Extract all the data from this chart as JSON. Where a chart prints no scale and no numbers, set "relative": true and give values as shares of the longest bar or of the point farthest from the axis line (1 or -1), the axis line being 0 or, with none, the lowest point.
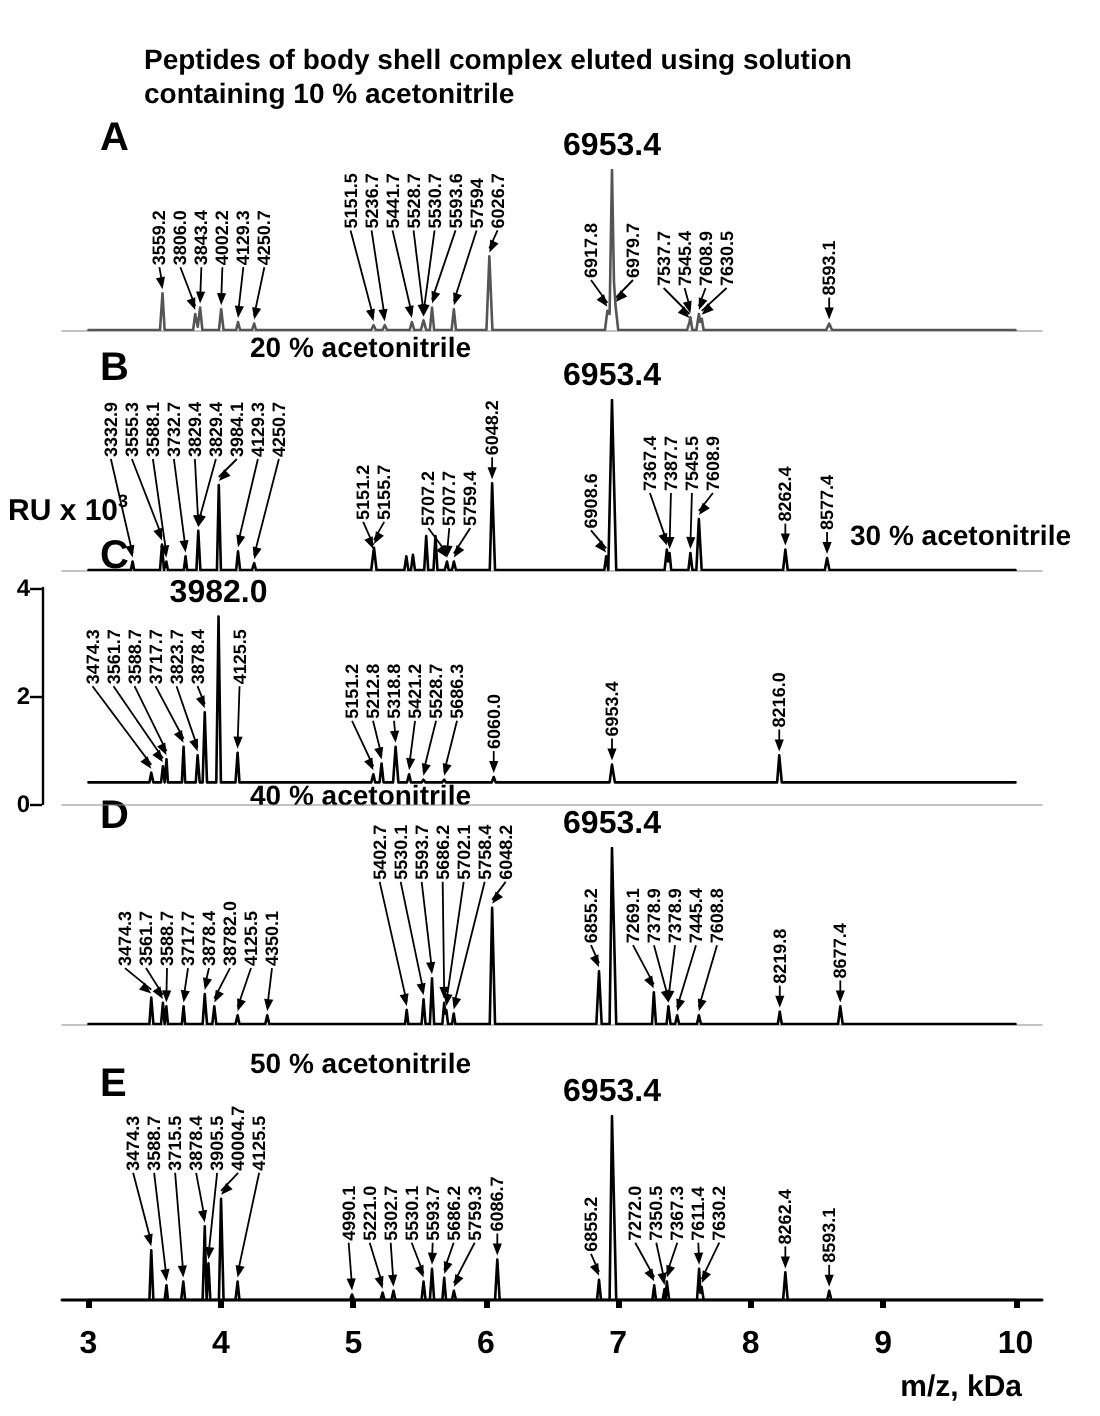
{
  "chart_data": [
    {
      "type": "line",
      "title": "A",
      "subtitle": "Peptides of body shell complex eluted using solution containing 10 % acetonitrile",
      "relative": true,
      "xlim": [
        2.8,
        10.2
      ],
      "tick_labels": false,
      "grid": false,
      "series": [
        {
          "color": "#555555",
          "x": [
            3.0,
            3.54,
            3.559,
            3.575,
            3.79,
            3.806,
            3.825,
            3.843,
            3.86,
            3.985,
            4.002,
            4.02,
            4.115,
            4.129,
            4.145,
            4.235,
            4.251,
            4.265,
            5.135,
            5.152,
            5.17,
            5.22,
            5.237,
            5.255,
            5.425,
            5.442,
            5.46,
            5.51,
            5.53,
            5.55,
            5.578,
            5.594,
            5.61,
            5.742,
            5.759,
            5.775,
            6.005,
            6.027,
            6.05,
            6.9,
            6.918,
            6.935,
            6.953,
            6.968,
            6.98,
            7.0,
            7.52,
            7.538,
            7.545,
            7.56,
            7.59,
            7.609,
            7.62,
            7.631,
            7.645,
            8.57,
            8.593,
            8.615,
            10.0
          ],
          "values": [
            0,
            0,
            0.23,
            0,
            0,
            0.1,
            0.02,
            0.14,
            0,
            0,
            0.13,
            0,
            0,
            0.05,
            0,
            0,
            0.04,
            0,
            0,
            0.03,
            0,
            0,
            0.03,
            0,
            0,
            0.05,
            0,
            0,
            0.06,
            0,
            0,
            0.14,
            0,
            0,
            0.13,
            0,
            0,
            0.46,
            0,
            0,
            0.12,
            0.1,
            1,
            0.3,
            0.15,
            0,
            0,
            0.05,
            0.08,
            0,
            0,
            0.1,
            0.05,
            0.07,
            0,
            0,
            0.04,
            0,
            0
          ]
        }
      ],
      "annotations": [
        {
          "text": "3559.2",
          "x": 3.559,
          "y": 0.23
        },
        {
          "text": "3806.0",
          "x": 3.806,
          "y": 0.1
        },
        {
          "text": "3843.4",
          "x": 3.843,
          "y": 0.14
        },
        {
          "text": "4002.2",
          "x": 4.002,
          "y": 0.13
        },
        {
          "text": "4129.3",
          "x": 4.129,
          "y": 0.05
        },
        {
          "text": "4250.7",
          "x": 4.251,
          "y": 0.04
        },
        {
          "text": "5151.5",
          "x": 5.152,
          "y": 0.03
        },
        {
          "text": "5236.7",
          "x": 5.237,
          "y": 0.03
        },
        {
          "text": "5441.7",
          "x": 5.442,
          "y": 0.05
        },
        {
          "text": "5528.7",
          "x": 5.53,
          "y": 0.06
        },
        {
          "text": "5530.7",
          "x": 5.53,
          "y": 0.06
        },
        {
          "text": "5593.6",
          "x": 5.594,
          "y": 0.14
        },
        {
          "text": "57594",
          "x": 5.759,
          "y": 0.13
        },
        {
          "text": "6026.7",
          "x": 6.027,
          "y": 0.46
        },
        {
          "text": "6917.8",
          "x": 6.918,
          "y": 0.12
        },
        {
          "text": "6953.4",
          "x": 6.953,
          "y": 1
        },
        {
          "text": "6979.7",
          "x": 6.98,
          "y": 0.15
        },
        {
          "text": "7537.7",
          "x": 7.538,
          "y": 0.05
        },
        {
          "text": "7545.4",
          "x": 7.545,
          "y": 0.08
        },
        {
          "text": "7608.9",
          "x": 7.609,
          "y": 0.1
        },
        {
          "text": "7630.5",
          "x": 7.631,
          "y": 0.07
        },
        {
          "text": "8593.1",
          "x": 8.593,
          "y": 0.04
        }
      ]
    },
    {
      "type": "line",
      "title": "B",
      "subtitle": "20 % acetonitrile",
      "relative": true,
      "xlim": [
        2.8,
        10.2
      ],
      "tick_labels": false,
      "grid": false,
      "series": [
        {
          "color": "#000000",
          "x": [
            3.0,
            3.32,
            3.333,
            3.345,
            3.54,
            3.555,
            3.57,
            3.575,
            3.588,
            3.6,
            3.72,
            3.733,
            3.745,
            3.815,
            3.829,
            3.845,
            3.97,
            3.984,
            4.0,
            4.115,
            4.129,
            4.145,
            4.235,
            4.251,
            4.265,
            5.135,
            5.151,
            5.156,
            5.175,
            5.385,
            5.4,
            5.415,
            5.435,
            5.45,
            5.465,
            5.535,
            5.55,
            5.565,
            5.605,
            5.62,
            5.635,
            5.69,
            5.707,
            5.72,
            5.745,
            5.759,
            5.775,
            6.03,
            6.048,
            6.07,
            6.895,
            6.909,
            6.925,
            6.935,
            6.953,
            6.985,
            7.35,
            7.367,
            7.377,
            7.388,
            7.4,
            7.53,
            7.545,
            7.56,
            7.59,
            7.609,
            7.63,
            8.245,
            8.262,
            8.28,
            8.56,
            8.577,
            8.595,
            10.0
          ],
          "values": [
            0,
            0,
            0.05,
            0,
            0,
            0.15,
            0,
            0,
            0.05,
            0,
            0,
            0.08,
            0,
            0,
            0.23,
            0,
            0,
            0.5,
            0,
            0,
            0.11,
            0,
            0,
            0.04,
            0,
            0,
            0.1,
            0.13,
            0,
            0,
            0.08,
            0,
            0,
            0.09,
            0,
            0,
            0.2,
            0,
            0,
            0.2,
            0,
            0,
            0.05,
            0,
            0,
            0.05,
            0,
            0,
            0.51,
            0,
            0,
            0.08,
            0,
            0,
            1,
            0,
            0,
            0.12,
            0.05,
            0.1,
            0,
            0,
            0.1,
            0,
            0,
            0.3,
            0,
            0,
            0.12,
            0,
            0,
            0.07,
            0,
            0
          ]
        }
      ],
      "annotations": [
        {
          "text": "3332.9",
          "x": 3.333,
          "y": 0.05
        },
        {
          "text": "3555.3",
          "x": 3.555,
          "y": 0.15
        },
        {
          "text": "3588.1",
          "x": 3.588,
          "y": 0.05
        },
        {
          "text": "3732.7",
          "x": 3.733,
          "y": 0.08
        },
        {
          "text": "3829.4",
          "x": 3.829,
          "y": 0.23
        },
        {
          "text": "3829.4",
          "x": 3.829,
          "y": 0.23
        },
        {
          "text": "3984.1",
          "x": 3.984,
          "y": 0.5
        },
        {
          "text": "4129.3",
          "x": 4.129,
          "y": 0.11
        },
        {
          "text": "4250.7",
          "x": 4.251,
          "y": 0.04
        },
        {
          "text": "5151.2",
          "x": 5.151,
          "y": 0.1
        },
        {
          "text": "5155.7",
          "x": 5.156,
          "y": 0.13
        },
        {
          "text": "5707.2",
          "x": 5.707,
          "y": 0.05
        },
        {
          "text": "5707.7",
          "x": 5.707,
          "y": 0.05
        },
        {
          "text": "5759.4",
          "x": 5.759,
          "y": 0.05
        },
        {
          "text": "6048.2",
          "x": 6.048,
          "y": 0.51
        },
        {
          "text": "6908.6",
          "x": 6.909,
          "y": 0.08
        },
        {
          "text": "6953.4",
          "x": 6.953,
          "y": 1
        },
        {
          "text": "7367.4",
          "x": 7.367,
          "y": 0.12
        },
        {
          "text": "7387.7",
          "x": 7.388,
          "y": 0.1
        },
        {
          "text": "7545.5",
          "x": 7.545,
          "y": 0.1
        },
        {
          "text": "7608.9",
          "x": 7.609,
          "y": 0.3
        },
        {
          "text": "8262.4",
          "x": 8.262,
          "y": 0.12
        },
        {
          "text": "8577.4",
          "x": 8.577,
          "y": 0.07
        }
      ]
    },
    {
      "type": "line",
      "title": "C",
      "subtitle": "30 % acetonitrile",
      "ylabel": "RU x 10$^{3}$",
      "xlim": [
        2.8,
        10.2
      ],
      "ylim": [
        0,
        4
      ],
      "yticks": [
        0,
        2,
        4
      ],
      "tick_labels": "y",
      "grid": false,
      "series": [
        {
          "color": "#000000",
          "x": [
            3.0,
            3.46,
            3.474,
            3.49,
            3.548,
            3.562,
            3.575,
            3.589,
            3.6,
            3.705,
            3.718,
            3.73,
            3.81,
            3.824,
            3.84,
            3.862,
            3.878,
            3.895,
            3.965,
            3.982,
            4.0,
            4.11,
            4.126,
            4.14,
            5.135,
            5.151,
            5.165,
            5.198,
            5.213,
            5.228,
            5.3,
            5.319,
            5.34,
            5.405,
            5.421,
            5.435,
            5.515,
            5.529,
            5.545,
            5.67,
            5.686,
            5.7,
            6.045,
            6.06,
            6.075,
            6.935,
            6.953,
            6.975,
            8.2,
            8.216,
            8.235,
            10.0
          ],
          "values": [
            0.4,
            0.4,
            0.58,
            0.4,
            0.4,
            0.7,
            0.4,
            0.83,
            0.4,
            0.4,
            1.06,
            0.4,
            0.4,
            0.9,
            0.4,
            0.4,
            1.7,
            0.4,
            0.4,
            3.47,
            0.4,
            0.4,
            0.95,
            0.4,
            0.4,
            0.55,
            0.4,
            0.4,
            0.75,
            0.4,
            0.4,
            1.06,
            0.4,
            0.4,
            0.55,
            0.4,
            0.4,
            0.45,
            0.4,
            0.4,
            0.45,
            0.4,
            0.4,
            0.5,
            0.4,
            0.4,
            0.73,
            0.4,
            0.4,
            0.9,
            0.4,
            0.4
          ]
        }
      ],
      "annotations": [
        {
          "text": "3474.3",
          "x": 3.474,
          "y": 0.58
        },
        {
          "text": "3561.7",
          "x": 3.562,
          "y": 0.7
        },
        {
          "text": "3588.7",
          "x": 3.589,
          "y": 0.83
        },
        {
          "text": "3717.7",
          "x": 3.718,
          "y": 1.06
        },
        {
          "text": "3823.7",
          "x": 3.824,
          "y": 0.9
        },
        {
          "text": "3878.4",
          "x": 3.878,
          "y": 1.7
        },
        {
          "text": "3982.0",
          "x": 3.982,
          "y": 3.47
        },
        {
          "text": "4125.5",
          "x": 4.126,
          "y": 0.95
        },
        {
          "text": "5151.2",
          "x": 5.151,
          "y": 0.55
        },
        {
          "text": "5212.8",
          "x": 5.213,
          "y": 0.75
        },
        {
          "text": "5318.8",
          "x": 5.319,
          "y": 1.06
        },
        {
          "text": "5421.2",
          "x": 5.421,
          "y": 0.55
        },
        {
          "text": "5528.7",
          "x": 5.529,
          "y": 0.45
        },
        {
          "text": "5686.3",
          "x": 5.686,
          "y": 0.45
        },
        {
          "text": "6060.0",
          "x": 6.06,
          "y": 0.5
        },
        {
          "text": "6953.4",
          "x": 6.953,
          "y": 0.73
        },
        {
          "text": "8216.0",
          "x": 8.216,
          "y": 0.9
        }
      ]
    },
    {
      "type": "line",
      "title": "D",
      "subtitle": "40 % acetonitrile",
      "relative": true,
      "xlim": [
        2.8,
        10.2
      ],
      "tick_labels": false,
      "grid": false,
      "series": [
        {
          "color": "#000000",
          "x": [
            3.0,
            3.46,
            3.474,
            3.49,
            3.548,
            3.562,
            3.575,
            3.588,
            3.6,
            3.705,
            3.718,
            3.73,
            3.862,
            3.878,
            3.895,
            3.935,
            3.95,
            3.965,
            4.11,
            4.126,
            4.14,
            4.335,
            4.35,
            4.365,
            5.39,
            5.403,
            5.415,
            5.515,
            5.53,
            5.545,
            5.578,
            5.594,
            5.61,
            5.672,
            5.686,
            5.694,
            5.702,
            5.715,
            5.745,
            5.758,
            5.77,
            6.03,
            6.048,
            6.07,
            6.835,
            6.855,
            6.875,
            6.935,
            6.953,
            6.985,
            7.255,
            7.269,
            7.285,
            7.365,
            7.379,
            7.395,
            7.43,
            7.445,
            7.46,
            7.595,
            7.609,
            7.625,
            8.205,
            8.22,
            8.235,
            8.66,
            8.677,
            8.695,
            10.0
          ],
          "values": [
            0,
            0,
            0.15,
            0,
            0,
            0.12,
            0,
            0.1,
            0,
            0,
            0.1,
            0,
            0,
            0.17,
            0,
            0,
            0.1,
            0,
            0,
            0.05,
            0,
            0,
            0.05,
            0,
            0,
            0.08,
            0,
            0,
            0.14,
            0,
            0,
            0.26,
            0,
            0,
            0.12,
            0.06,
            0.08,
            0,
            0,
            0.06,
            0,
            0,
            0.66,
            0,
            0,
            0.3,
            0,
            0,
            1,
            0,
            0,
            0.18,
            0,
            0,
            0.1,
            0,
            0,
            0.05,
            0,
            0,
            0.05,
            0,
            0,
            0.07,
            0,
            0,
            0.1,
            0,
            0
          ]
        }
      ],
      "annotations": [
        {
          "text": "3474.3",
          "x": 3.474,
          "y": 0.15
        },
        {
          "text": "3561.7",
          "x": 3.562,
          "y": 0.12
        },
        {
          "text": "3588.7",
          "x": 3.588,
          "y": 0.1
        },
        {
          "text": "3717.7",
          "x": 3.718,
          "y": 0.1
        },
        {
          "text": "3878.4",
          "x": 3.878,
          "y": 0.17
        },
        {
          "text": "38782.0",
          "x": 3.95,
          "y": 0.1
        },
        {
          "text": "4125.5",
          "x": 4.126,
          "y": 0.05
        },
        {
          "text": "4350.1",
          "x": 4.35,
          "y": 0.05
        },
        {
          "text": "5402.7",
          "x": 5.403,
          "y": 0.08
        },
        {
          "text": "5530.1",
          "x": 5.53,
          "y": 0.14
        },
        {
          "text": "5593.7",
          "x": 5.594,
          "y": 0.26
        },
        {
          "text": "5686.2",
          "x": 5.686,
          "y": 0.12
        },
        {
          "text": "5702.1",
          "x": 5.702,
          "y": 0.08
        },
        {
          "text": "5758.4",
          "x": 5.758,
          "y": 0.06
        },
        {
          "text": "6048.2",
          "x": 6.048,
          "y": 0.66
        },
        {
          "text": "6855.2",
          "x": 6.855,
          "y": 0.3
        },
        {
          "text": "6953.4",
          "x": 6.953,
          "y": 1
        },
        {
          "text": "7269.1",
          "x": 7.269,
          "y": 0.18
        },
        {
          "text": "7378.9",
          "x": 7.379,
          "y": 0.1
        },
        {
          "text": "7378.9",
          "x": 7.379,
          "y": 0.1
        },
        {
          "text": "7445.4",
          "x": 7.445,
          "y": 0.05
        },
        {
          "text": "7608.8",
          "x": 7.609,
          "y": 0.05
        },
        {
          "text": "8219.8",
          "x": 8.22,
          "y": 0.07
        },
        {
          "text": "8677.4",
          "x": 8.677,
          "y": 0.1
        }
      ]
    },
    {
      "type": "line",
      "title": "E",
      "subtitle": "50 % acetonitrile",
      "relative": true,
      "xlabel": "m/z, kDa",
      "xlim": [
        2.8,
        10.2
      ],
      "xticks": [
        3,
        4,
        5,
        6,
        7,
        8,
        9,
        10
      ],
      "tick_labels": "x",
      "grid": false,
      "series": [
        {
          "color": "#000000",
          "x": [
            3.0,
            3.46,
            3.474,
            3.49,
            3.575,
            3.589,
            3.6,
            3.7,
            3.716,
            3.73,
            3.862,
            3.878,
            3.892,
            3.906,
            3.92,
            3.985,
            4.001,
            4.02,
            4.11,
            4.126,
            4.14,
            4.975,
            4.99,
            5.005,
            5.205,
            5.221,
            5.235,
            5.288,
            5.303,
            5.318,
            5.515,
            5.53,
            5.545,
            5.578,
            5.594,
            5.61,
            5.672,
            5.686,
            5.7,
            5.745,
            5.759,
            5.775,
            6.07,
            6.087,
            6.105,
            6.84,
            6.855,
            6.87,
            6.935,
            6.953,
            6.985,
            7.258,
            7.272,
            7.285,
            7.335,
            7.35,
            7.358,
            7.367,
            7.385,
            7.595,
            7.611,
            7.62,
            7.63,
            7.645,
            8.245,
            8.262,
            8.28,
            8.578,
            8.593,
            8.61,
            10.0
          ],
          "values": [
            0,
            0,
            0.27,
            0,
            0,
            0.08,
            0,
            0,
            0.1,
            0,
            0,
            0.4,
            0,
            0.2,
            0,
            0,
            0.55,
            0,
            0,
            0.1,
            0,
            0,
            0.03,
            0,
            0,
            0.04,
            0,
            0,
            0.05,
            0,
            0,
            0.1,
            0,
            0,
            0.17,
            0,
            0,
            0.12,
            0,
            0,
            0.05,
            0,
            0,
            0.22,
            0,
            0,
            0.11,
            0,
            0,
            1,
            0,
            0,
            0.08,
            0,
            0,
            0.06,
            0,
            0.1,
            0,
            0,
            0.17,
            0.04,
            0.07,
            0,
            0,
            0.15,
            0,
            0,
            0.05,
            0,
            0
          ]
        }
      ],
      "annotations": [
        {
          "text": "3474.3",
          "x": 3.474,
          "y": 0.27
        },
        {
          "text": "3588.7",
          "x": 3.589,
          "y": 0.08
        },
        {
          "text": "3715.5",
          "x": 3.716,
          "y": 0.1
        },
        {
          "text": "3878.4",
          "x": 3.878,
          "y": 0.4
        },
        {
          "text": "3905.5",
          "x": 3.906,
          "y": 0.2
        },
        {
          "text": "40004.7",
          "x": 4.001,
          "y": 0.55
        },
        {
          "text": "4125.5",
          "x": 4.126,
          "y": 0.1
        },
        {
          "text": "4990.1",
          "x": 4.99,
          "y": 0.03
        },
        {
          "text": "5221.0",
          "x": 5.221,
          "y": 0.04
        },
        {
          "text": "5302.7",
          "x": 5.303,
          "y": 0.05
        },
        {
          "text": "5530.1",
          "x": 5.53,
          "y": 0.1
        },
        {
          "text": "5593.7",
          "x": 5.594,
          "y": 0.17
        },
        {
          "text": "5686.2",
          "x": 5.686,
          "y": 0.12
        },
        {
          "text": "5759.3",
          "x": 5.759,
          "y": 0.05
        },
        {
          "text": "6086.7",
          "x": 6.087,
          "y": 0.22
        },
        {
          "text": "6855.2",
          "x": 6.855,
          "y": 0.11
        },
        {
          "text": "6953.4",
          "x": 6.953,
          "y": 1
        },
        {
          "text": "7272.0",
          "x": 7.272,
          "y": 0.08
        },
        {
          "text": "7350.5",
          "x": 7.35,
          "y": 0.06
        },
        {
          "text": "7367.3",
          "x": 7.367,
          "y": 0.1
        },
        {
          "text": "7611.4",
          "x": 7.611,
          "y": 0.17
        },
        {
          "text": "7630.2",
          "x": 7.63,
          "y": 0.07
        },
        {
          "text": "8262.4",
          "x": 8.262,
          "y": 0.15
        },
        {
          "text": "8593.1",
          "x": 8.593,
          "y": 0.05
        }
      ]
    }
  ]
}
